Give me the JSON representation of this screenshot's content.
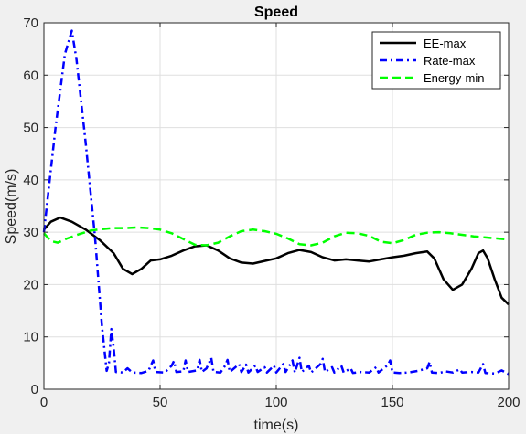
{
  "chart_data": {
    "type": "line",
    "title": "Speed",
    "xlabel": "time(s)",
    "ylabel": "Speed(m/s)",
    "xlim": [
      0,
      200
    ],
    "ylim": [
      0,
      70
    ],
    "xticks": [
      0,
      50,
      100,
      150,
      200
    ],
    "yticks": [
      0,
      10,
      20,
      30,
      40,
      50,
      60,
      70
    ],
    "grid": true,
    "legend_position": "top-right",
    "series": [
      {
        "name": "EE-max",
        "color": "#000000",
        "style": "solid",
        "points": [
          [
            0,
            30.5
          ],
          [
            3,
            32
          ],
          [
            7,
            32.8
          ],
          [
            12,
            32
          ],
          [
            18,
            30.5
          ],
          [
            24,
            28.5
          ],
          [
            30,
            26
          ],
          [
            34,
            23
          ],
          [
            38,
            22
          ],
          [
            42,
            23
          ],
          [
            46,
            24.6
          ],
          [
            50,
            24.8
          ],
          [
            55,
            25.5
          ],
          [
            60,
            26.5
          ],
          [
            65,
            27.3
          ],
          [
            70,
            27.5
          ],
          [
            75,
            26.5
          ],
          [
            80,
            25
          ],
          [
            85,
            24.2
          ],
          [
            90,
            24
          ],
          [
            95,
            24.5
          ],
          [
            100,
            25
          ],
          [
            105,
            26
          ],
          [
            110,
            26.6
          ],
          [
            115,
            26.2
          ],
          [
            120,
            25.2
          ],
          [
            125,
            24.6
          ],
          [
            130,
            24.8
          ],
          [
            135,
            24.6
          ],
          [
            140,
            24.4
          ],
          [
            145,
            24.8
          ],
          [
            150,
            25.2
          ],
          [
            155,
            25.5
          ],
          [
            160,
            26
          ],
          [
            165,
            26.3
          ],
          [
            168,
            25
          ],
          [
            172,
            21
          ],
          [
            176,
            19
          ],
          [
            180,
            20
          ],
          [
            184,
            23
          ],
          [
            187,
            26
          ],
          [
            189,
            26.5
          ],
          [
            191,
            25
          ],
          [
            194,
            21
          ],
          [
            197,
            17.5
          ],
          [
            200,
            16.2
          ]
        ]
      },
      {
        "name": "Rate-max",
        "color": "#0000ff",
        "style": "dashdot",
        "points": [
          [
            0,
            30
          ],
          [
            5,
            50
          ],
          [
            9,
            64
          ],
          [
            12,
            68.5
          ],
          [
            14,
            63
          ],
          [
            18,
            47
          ],
          [
            22,
            29
          ],
          [
            25,
            12
          ],
          [
            27,
            3.5
          ],
          [
            28,
            5
          ],
          [
            29,
            11.5
          ],
          [
            30,
            8
          ],
          [
            31,
            3.3
          ],
          [
            34,
            3.2
          ],
          [
            36,
            4
          ],
          [
            38,
            3.2
          ],
          [
            42,
            3.1
          ],
          [
            45,
            3.5
          ],
          [
            47,
            5.5
          ],
          [
            48,
            3.3
          ],
          [
            52,
            3.2
          ],
          [
            55,
            4.5
          ],
          [
            56,
            5.4
          ],
          [
            57,
            3.3
          ],
          [
            60,
            3.4
          ],
          [
            61,
            5.5
          ],
          [
            62,
            3.3
          ],
          [
            66,
            3.6
          ],
          [
            67,
            5.6
          ],
          [
            68,
            3.3
          ],
          [
            70,
            4
          ],
          [
            72,
            6
          ],
          [
            73,
            3.3
          ],
          [
            76,
            3.2
          ],
          [
            78,
            4.5
          ],
          [
            79,
            5.6
          ],
          [
            80,
            3.3
          ],
          [
            84,
            4.8
          ],
          [
            85,
            3.3
          ],
          [
            87,
            4.7
          ],
          [
            88,
            3.2
          ],
          [
            91,
            4.5
          ],
          [
            92,
            3.3
          ],
          [
            95,
            4.2
          ],
          [
            96,
            3.2
          ],
          [
            99,
            4.5
          ],
          [
            100,
            3.2
          ],
          [
            103,
            4.8
          ],
          [
            104,
            3.3
          ],
          [
            107,
            5.5
          ],
          [
            108,
            3.2
          ],
          [
            110,
            6
          ],
          [
            111,
            3.3
          ],
          [
            114,
            4.5
          ],
          [
            115,
            3.2
          ],
          [
            119,
            4.8
          ],
          [
            120,
            5.8
          ],
          [
            121,
            3.3
          ],
          [
            124,
            4.2
          ],
          [
            125,
            3.2
          ],
          [
            128,
            4.5
          ],
          [
            129,
            3.2
          ],
          [
            132,
            4
          ],
          [
            133,
            3.1
          ],
          [
            136,
            3.3
          ],
          [
            140,
            3.2
          ],
          [
            143,
            4.2
          ],
          [
            144,
            3.2
          ],
          [
            148,
            4.6
          ],
          [
            149,
            5.5
          ],
          [
            150,
            3.2
          ],
          [
            153,
            3.1
          ],
          [
            157,
            3.2
          ],
          [
            161,
            3.5
          ],
          [
            165,
            4
          ],
          [
            166,
            5.2
          ],
          [
            167,
            3.2
          ],
          [
            170,
            3.1
          ],
          [
            173,
            3.4
          ],
          [
            176,
            3.2
          ],
          [
            179,
            3.8
          ],
          [
            180,
            3.2
          ],
          [
            184,
            3.3
          ],
          [
            187,
            3.2
          ],
          [
            189,
            4.8
          ],
          [
            190,
            3.1
          ],
          [
            194,
            3
          ],
          [
            197,
            3.6
          ],
          [
            200,
            2.9
          ]
        ]
      },
      {
        "name": "Energy-min",
        "color": "#00ff00",
        "style": "dashed",
        "points": [
          [
            0,
            29.8
          ],
          [
            3,
            28.3
          ],
          [
            6,
            28
          ],
          [
            10,
            28.8
          ],
          [
            15,
            29.6
          ],
          [
            20,
            30.3
          ],
          [
            25,
            30.6
          ],
          [
            30,
            30.8
          ],
          [
            35,
            30.8
          ],
          [
            40,
            30.9
          ],
          [
            45,
            30.8
          ],
          [
            50,
            30.5
          ],
          [
            55,
            29.8
          ],
          [
            60,
            28.7
          ],
          [
            65,
            27.6
          ],
          [
            70,
            27.5
          ],
          [
            75,
            28
          ],
          [
            80,
            29.2
          ],
          [
            85,
            30.2
          ],
          [
            90,
            30.5
          ],
          [
            95,
            30.2
          ],
          [
            100,
            29.7
          ],
          [
            105,
            28.8
          ],
          [
            110,
            27.7
          ],
          [
            115,
            27.5
          ],
          [
            120,
            28
          ],
          [
            125,
            29.2
          ],
          [
            130,
            29.9
          ],
          [
            135,
            29.8
          ],
          [
            140,
            29.3
          ],
          [
            145,
            28.2
          ],
          [
            150,
            27.9
          ],
          [
            155,
            28.5
          ],
          [
            160,
            29.5
          ],
          [
            165,
            29.9
          ],
          [
            170,
            30
          ],
          [
            175,
            29.8
          ],
          [
            180,
            29.5
          ],
          [
            185,
            29.2
          ],
          [
            190,
            29
          ],
          [
            195,
            28.8
          ],
          [
            200,
            28.6
          ]
        ]
      }
    ]
  }
}
